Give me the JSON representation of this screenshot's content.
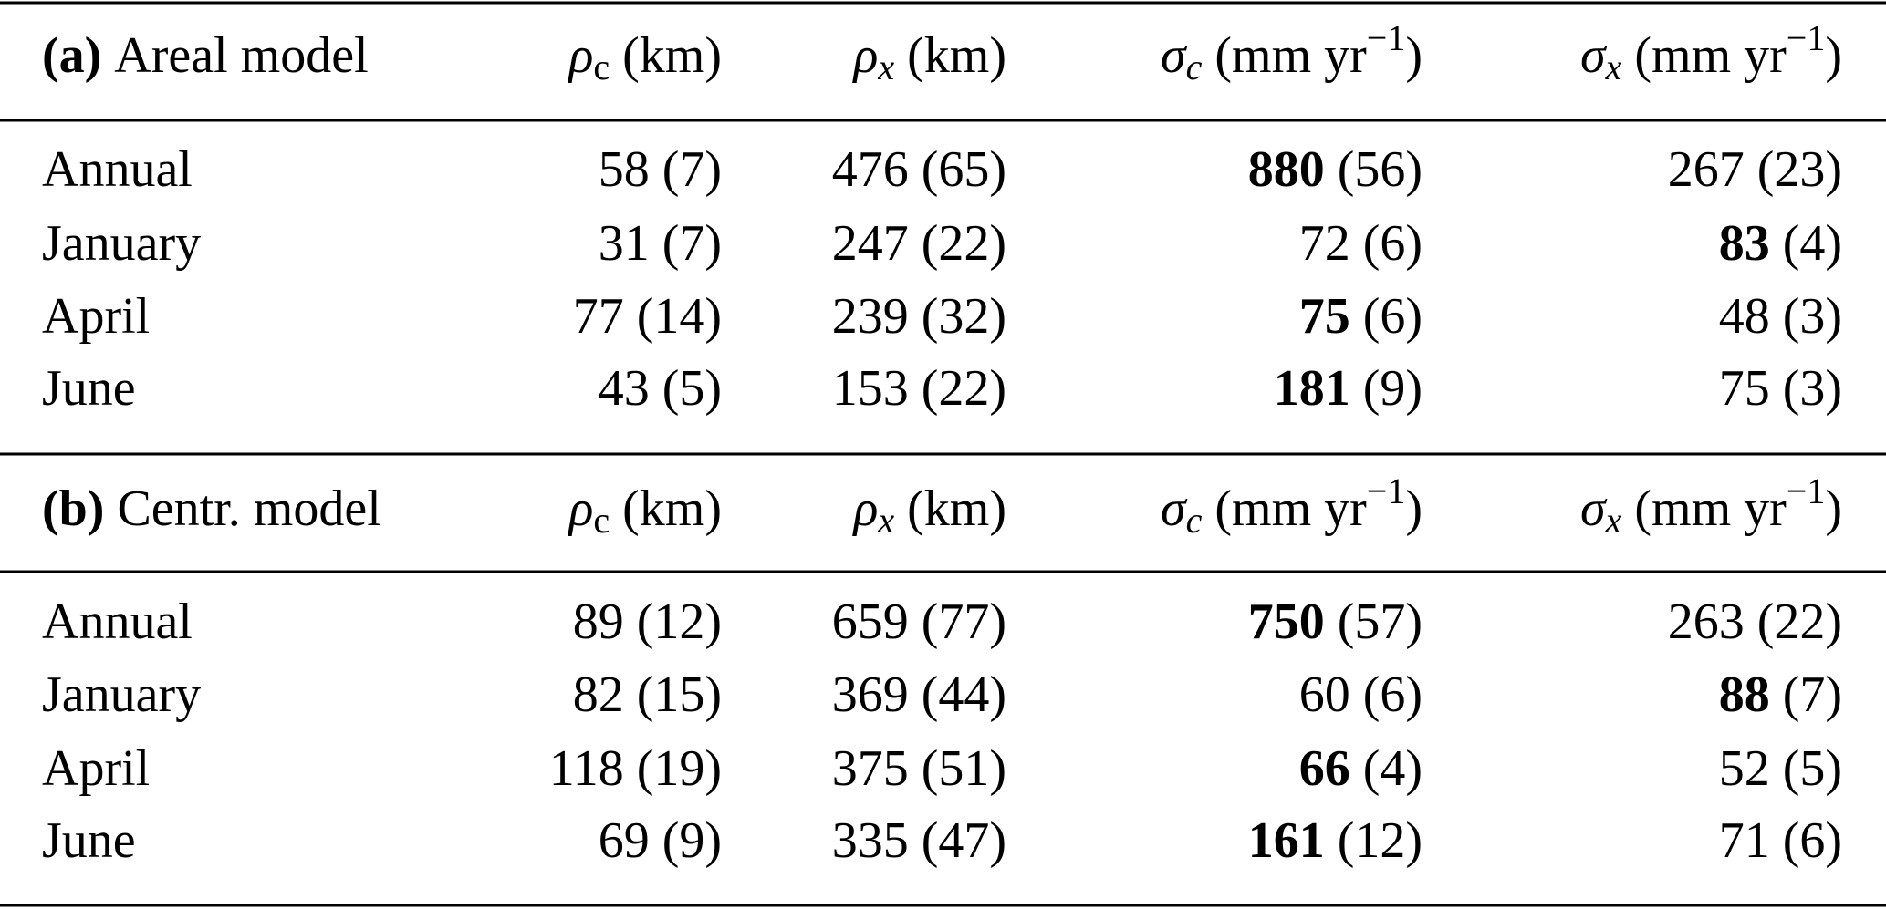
{
  "sections": [
    {
      "tag": "(a)",
      "label": "Areal model",
      "columns": [
        {
          "symbol": "ρ",
          "sub": "c",
          "unit": "(km)"
        },
        {
          "symbol": "ρ",
          "sub": "x",
          "unit": "(km)"
        },
        {
          "symbol": "σ",
          "sub": "c",
          "unit": "(mm yr",
          "sup": "−1",
          "close": ")"
        },
        {
          "symbol": "σ",
          "sub": "x",
          "unit": "(mm yr",
          "sup": "−1",
          "close": ")"
        }
      ],
      "rows": [
        {
          "name": "Annual",
          "cells": [
            {
              "value": "58",
              "error": "(7)"
            },
            {
              "value": "476",
              "error": "(65)"
            },
            {
              "value": "880",
              "error": "(56)",
              "bold": true
            },
            {
              "value": "267",
              "error": "(23)"
            }
          ]
        },
        {
          "name": "January",
          "cells": [
            {
              "value": "31",
              "error": "(7)"
            },
            {
              "value": "247",
              "error": "(22)"
            },
            {
              "value": "72",
              "error": "(6)"
            },
            {
              "value": "83",
              "error": "(4)",
              "bold": true
            }
          ]
        },
        {
          "name": "April",
          "cells": [
            {
              "value": "77",
              "error": "(14)"
            },
            {
              "value": "239",
              "error": "(32)"
            },
            {
              "value": "75",
              "error": "(6)",
              "bold": true
            },
            {
              "value": "48",
              "error": "(3)"
            }
          ]
        },
        {
          "name": "June",
          "cells": [
            {
              "value": "43",
              "error": "(5)"
            },
            {
              "value": "153",
              "error": "(22)"
            },
            {
              "value": "181",
              "error": "(9)",
              "bold": true
            },
            {
              "value": "75",
              "error": "(3)"
            }
          ]
        }
      ]
    },
    {
      "tag": "(b)",
      "label": "Centr. model",
      "columns": [
        {
          "symbol": "ρ",
          "sub": "c",
          "unit": "(km)"
        },
        {
          "symbol": "ρ",
          "sub": "x",
          "unit": "(km)"
        },
        {
          "symbol": "σ",
          "sub": "c",
          "unit": "(mm yr",
          "sup": "−1",
          "close": ")"
        },
        {
          "symbol": "σ",
          "sub": "x",
          "unit": "(mm yr",
          "sup": "−1",
          "close": ")"
        }
      ],
      "rows": [
        {
          "name": "Annual",
          "cells": [
            {
              "value": "89",
              "error": "(12)"
            },
            {
              "value": "659",
              "error": "(77)"
            },
            {
              "value": "750",
              "error": "(57)",
              "bold": true
            },
            {
              "value": "263",
              "error": "(22)"
            }
          ]
        },
        {
          "name": "January",
          "cells": [
            {
              "value": "82",
              "error": "(15)"
            },
            {
              "value": "369",
              "error": "(44)"
            },
            {
              "value": "60",
              "error": "(6)"
            },
            {
              "value": "88",
              "error": "(7)",
              "bold": true
            }
          ]
        },
        {
          "name": "April",
          "cells": [
            {
              "value": "118",
              "error": "(19)"
            },
            {
              "value": "375",
              "error": "(51)"
            },
            {
              "value": "66",
              "error": "(4)",
              "bold": true
            },
            {
              "value": "52",
              "error": "(5)"
            }
          ]
        },
        {
          "name": "June",
          "cells": [
            {
              "value": "69",
              "error": "(9)"
            },
            {
              "value": "335",
              "error": "(47)"
            },
            {
              "value": "161",
              "error": "(12)",
              "bold": true
            },
            {
              "value": "71",
              "error": "(6)"
            }
          ]
        }
      ]
    }
  ]
}
